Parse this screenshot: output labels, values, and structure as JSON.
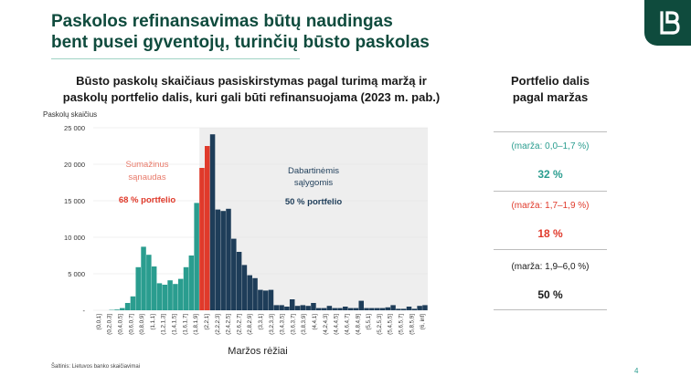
{
  "slide": {
    "title_line1": "Paskolos refinansavimas būtų naudingas",
    "title_line2": "bent pusei gyventojų, turinčių būsto paskolas",
    "source": "Šaltinis: Lietuvos banko skaičiavimai",
    "page_number": "4",
    "logo_icon": "lb-logo-icon"
  },
  "colors": {
    "teal": "#2a9d8f",
    "red": "#e03a2b",
    "navy": "#1e3d59",
    "brand": "#0f4b3d"
  },
  "chart_data": {
    "type": "bar",
    "title_line1": "Būsto paskolų skaičiaus pasiskirstymas pagal turimą maržą ir",
    "title_line2": "paskolų portfelio dalis, kuri gali būti refinansuojama (2023 m. pab.)",
    "ylabel": "Paskolų skaičius",
    "xlabel": "Maržos rėžiai",
    "ylim": [
      0,
      25000
    ],
    "yticks": [
      {
        "value": 0,
        "label": "-"
      },
      {
        "value": 5000,
        "label": "5 000"
      },
      {
        "value": 10000,
        "label": "10 000"
      },
      {
        "value": 15000,
        "label": "15 000"
      },
      {
        "value": 20000,
        "label": "20 000"
      },
      {
        "value": 25000,
        "label": "25 000"
      }
    ],
    "tick_labels": [
      "(0,0,1]",
      "(0,2,0,3]",
      "(0,4,0,5]",
      "(0,6,0,7]",
      "(0,8,0,9]",
      "(1,1,1]",
      "(1,2,1,3]",
      "(1,4,1,5]",
      "(1,6,1,7]",
      "(1,8,1,9]",
      "(2,2,1]",
      "(2,2,2,3]",
      "(2,4,2,5]",
      "(2,6,2,7]",
      "(2,8,2,9]",
      "(3,3,1]",
      "(3,2,3,3]",
      "(3,4,3,5]",
      "(3,6,3,7]",
      "(3,8,3,9]",
      "(4,4,1]",
      "(4,2,4,3]",
      "(4,4,4,5]",
      "(4,6,4,7]",
      "(4,8,4,9]",
      "(5,5,1]",
      "(5,2,5,3]",
      "(5,4,5,5]",
      "(5,6,5,7]",
      "(5,8,5,9]",
      "(6, inf]"
    ],
    "values": [
      0,
      0,
      0,
      50,
      100,
      300,
      1000,
      1900,
      5900,
      8700,
      7600,
      6000,
      3700,
      3500,
      4100,
      3600,
      4300,
      5900,
      7500,
      14700,
      19500,
      22500,
      24100,
      13800,
      13600,
      13900,
      9800,
      8000,
      6200,
      4800,
      4400,
      2800,
      2700,
      2800,
      700,
      700,
      500,
      1500,
      600,
      700,
      600,
      1000,
      300,
      300,
      600,
      300,
      300,
      500,
      300,
      300,
      1300,
      300,
      300,
      300,
      300,
      400,
      700,
      200,
      200,
      500,
      200,
      600,
      700
    ],
    "segments": [
      {
        "name": "Sumažinus sąnaudas",
        "share_label": "68 % portfelio",
        "color": "#2a9d8f",
        "to_index": 19
      },
      {
        "name": "",
        "share_label": "",
        "color": "#e03a2b",
        "to_index": 21
      },
      {
        "name": "Dabartinėmis sąlygomis",
        "share_label": "50 % portfelio",
        "color": "#1e3d59",
        "to_index": 62
      }
    ],
    "annotations": {
      "left_line1": "Sumažinus",
      "left_line2": "sąnaudas",
      "left_share": "68 % portfelio",
      "right_line1": "Dabartinėmis",
      "right_line2": "sąlygomis",
      "right_share": "50 % portfelio"
    },
    "shading": "light grey band behind bars from the red bars to the right end"
  },
  "side": {
    "title_line1": "Portfelio dalis",
    "title_line2": "pagal maržas",
    "rows": [
      {
        "margin": "(marža: 0,0–1,7 %)",
        "share": "32 %",
        "color": "#2a9d8f"
      },
      {
        "margin": "(marža: 1,7–1,9 %)",
        "share": "18 %",
        "color": "#e03a2b"
      },
      {
        "margin": "(marža: 1,9–6,0 %)",
        "share": "50 %",
        "color": "#1a1a1a"
      }
    ]
  }
}
